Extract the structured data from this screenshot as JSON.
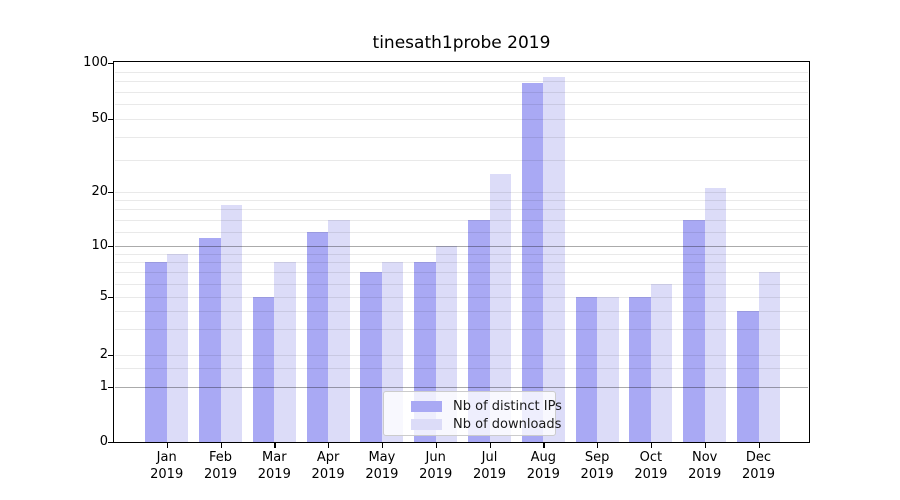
{
  "chart": {
    "title": "tinesath1probe 2019",
    "legend": {
      "items": [
        {
          "label": "Nb of distinct IPs",
          "color": "#a9a9f4"
        },
        {
          "label": "Nb of downloads",
          "color": "#dcdcf8"
        }
      ]
    }
  },
  "chart_data": {
    "type": "bar",
    "title": "tinesath1probe 2019",
    "categories": [
      "Jan",
      "Feb",
      "Mar",
      "Apr",
      "May",
      "Jun",
      "Jul",
      "Aug",
      "Sep",
      "Oct",
      "Nov",
      "Dec"
    ],
    "category_year": "2019",
    "series": [
      {
        "name": "Nb of distinct IPs",
        "color": "#a9a9f4",
        "values": [
          8,
          11,
          5,
          12,
          7,
          8,
          14,
          78,
          5,
          5,
          14,
          4
        ]
      },
      {
        "name": "Nb of downloads",
        "color": "#dcdcf8",
        "values": [
          9,
          17,
          8,
          14,
          8,
          10,
          25,
          84,
          5,
          6,
          21,
          7
        ]
      }
    ],
    "xlabel": "",
    "ylabel": "",
    "yscale": "symlog",
    "yticks": [
      0,
      1,
      2,
      5,
      10,
      20,
      50,
      100
    ],
    "minor_yticks": [
      1.5,
      3,
      4,
      6,
      7,
      8,
      9,
      12,
      14,
      16,
      18,
      30,
      40,
      60,
      70,
      80,
      90
    ],
    "dark_grid_ticks": [
      1,
      10
    ],
    "ylim": [
      0,
      103
    ],
    "grid": "horizontal",
    "legend_position": "lower-center-inside"
  }
}
